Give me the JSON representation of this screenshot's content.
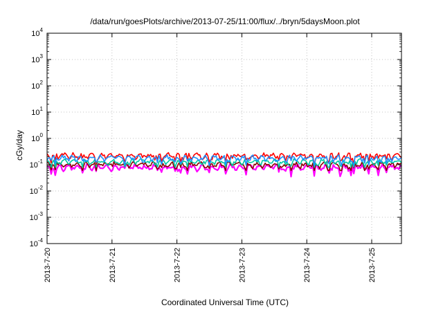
{
  "chart_data": {
    "type": "line",
    "title": "/data/run/goesPlots/archive/2013-07-25/11:00/flux/../bryn/5daysMoon.plot",
    "xlabel": "Coordinated Universal Time (UTC)",
    "ylabel": "cGy/day",
    "yscale": "log",
    "ylim": [
      0.0001,
      10000
    ],
    "xlim": [
      "2013-07-20 00:00",
      "2013-07-25 11:00"
    ],
    "x_ticks": [
      "2013-7-20",
      "2013-7-21",
      "2013-7-22",
      "2013-7-23",
      "2013-7-24",
      "2013-7-25"
    ],
    "y_ticks": [
      {
        "base": "10",
        "exp": "4",
        "value": 10000
      },
      {
        "base": "10",
        "exp": "3",
        "value": 1000
      },
      {
        "base": "10",
        "exp": "2",
        "value": 100
      },
      {
        "base": "10",
        "exp": "1",
        "value": 10
      },
      {
        "base": "10",
        "exp": "0",
        "value": 1
      },
      {
        "base": "10",
        "exp": "-1",
        "value": 0.1
      },
      {
        "base": "10",
        "exp": "-2",
        "value": 0.01
      },
      {
        "base": "10",
        "exp": "-3",
        "value": 0.001
      },
      {
        "base": "10",
        "exp": "-4",
        "value": 0.0001
      }
    ],
    "grid": true,
    "legend": "none",
    "series": [
      {
        "color": "#ff00ff",
        "level": 0.08,
        "spike_min": 0.035
      },
      {
        "color": "#8b0000",
        "level": 0.1,
        "spike_min": 0.06
      },
      {
        "color": "#00c8a0",
        "level": 0.13,
        "spike_min": 0.08
      },
      {
        "color": "#ff0000",
        "level": 0.22,
        "spike_min": 0.1
      },
      {
        "color": "#1e90ff",
        "level": 0.18,
        "spike_min": 0.09
      }
    ]
  }
}
